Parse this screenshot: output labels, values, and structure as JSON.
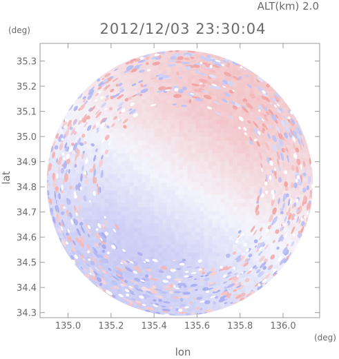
{
  "header": {
    "altitude_label": "ALT(km)  2.0",
    "timestamp": "2012/12/03 23:30:04"
  },
  "chart_data": {
    "type": "heatmap",
    "title": "2012/12/03 23:30:04",
    "xlabel": "lon",
    "ylabel": "lat",
    "x_unit": "(deg)",
    "y_unit": "(deg)",
    "xlim": [
      134.87,
      136.17
    ],
    "ylim": [
      34.28,
      35.37
    ],
    "x_ticks": [
      135.0,
      135.2,
      135.4,
      135.6,
      135.8,
      136.0
    ],
    "y_ticks": [
      34.3,
      34.4,
      34.5,
      34.6,
      34.7,
      34.8,
      34.9,
      35.0,
      35.1,
      35.2,
      35.3
    ],
    "x_tick_labels": [
      "135.0",
      "135.2",
      "135.4",
      "135.6",
      "135.8",
      "136.0"
    ],
    "y_tick_labels": [
      "34.3",
      "34.4",
      "34.5",
      "34.6",
      "34.7",
      "34.8",
      "34.9",
      "35.0",
      "35.1",
      "35.2",
      "35.3"
    ],
    "radar_center": {
      "lon": 135.52,
      "lat": 34.815
    },
    "radar_coverage_radius_deg_lon": 0.62,
    "colors": {
      "positive": "#f2a5a5",
      "negative": "#a9aef0",
      "neutral": "#f4f4fb",
      "axis": "#9a9a9a"
    },
    "grid": false
  }
}
